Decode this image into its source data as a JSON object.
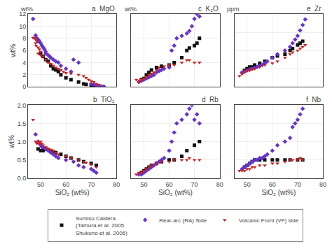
{
  "chart_data": [
    {
      "type": "scatter",
      "title": "a  MgO",
      "ylabel": "wt%",
      "annotations": [
        "wt%"
      ],
      "xlim": [
        45,
        80
      ],
      "xticks": [
        50,
        60,
        70,
        80
      ],
      "ylim": [
        0,
        12
      ],
      "yticks": [
        0,
        2,
        4,
        6,
        8,
        10,
        12
      ],
      "grid": true,
      "tick_labels": "y",
      "legend": "bottom",
      "series": [
        {
          "name": "Sumisu Caldera\n(Tamura et al. 2005\nShukuno et al. 2006)",
          "color": "#111111",
          "marker": "square",
          "x": [
            49,
            50,
            51,
            52,
            53,
            54,
            55,
            56,
            57,
            58,
            60,
            62,
            65,
            67,
            68,
            70,
            71,
            72,
            73
          ],
          "values": [
            7.5,
            5.5,
            5.0,
            4.5,
            4.2,
            3.5,
            3.0,
            2.8,
            2.5,
            2.0,
            1.5,
            1.2,
            0.8,
            0.5,
            0.4,
            0.3,
            0.2,
            0.15,
            0.1
          ]
        },
        {
          "name": "Rear-arc (RA) Side",
          "color": "#6633cc",
          "marker": "diamond",
          "x": [
            47,
            48,
            48.5,
            49,
            49.5,
            50,
            50.5,
            51,
            51.5,
            52,
            52,
            53,
            53.5,
            54,
            55,
            56,
            57,
            58,
            60,
            62,
            63,
            65,
            70,
            71,
            72,
            73,
            74,
            75
          ],
          "values": [
            11.2,
            8.5,
            8.0,
            7.8,
            7.5,
            7.2,
            6.8,
            6.5,
            6.2,
            5.8,
            5.5,
            5.2,
            5.0,
            4.8,
            4.5,
            4.2,
            4.0,
            3.5,
            3.0,
            2.5,
            4.5,
            4.0,
            0.5,
            0.4,
            0.3,
            0.2,
            0.1,
            0.1
          ]
        },
        {
          "name": "Volcanic Front (VF) side",
          "color": "#cc2222",
          "marker": "triangle-down",
          "x": [
            47,
            47.5,
            48,
            48.5,
            48,
            48.2,
            49,
            49.5,
            50,
            49,
            50,
            51,
            52,
            53,
            54,
            55,
            56,
            57,
            58,
            59,
            60,
            62,
            65,
            67,
            68,
            69,
            70,
            71,
            72,
            73
          ],
          "values": [
            8.1,
            8.1,
            7.8,
            7.5,
            7.2,
            6.8,
            6.5,
            6.2,
            5.8,
            5.5,
            5.2,
            5.0,
            4.5,
            4.0,
            3.8,
            3.5,
            3.2,
            3.0,
            2.8,
            2.5,
            2.3,
            2.2,
            2.0,
            1.8,
            1.5,
            1.2,
            1.0,
            0.8,
            0.5,
            0.3
          ]
        }
      ]
    },
    {
      "type": "scatter",
      "title": "b  TiO₂",
      "ylabel": "wt%",
      "xlabel": "SiO₂ (wt%)",
      "xlim": [
        45,
        80
      ],
      "xticks": [
        50,
        60,
        70,
        80
      ],
      "ylim": [
        0,
        2
      ],
      "yticks": [
        {
          "value": 0,
          "label": "0.0"
        },
        0.5,
        {
          "value": 1,
          "label": "1.0"
        },
        1.5,
        {
          "value": 2,
          "label": "2.0"
        }
      ],
      "grid": true,
      "tick_labels": true,
      "legend": "bottom",
      "series": [
        {
          "name": "Sumisu Caldera\n(Tamura et al. 2005\nShukuno et al. 2006)",
          "color": "#111111",
          "marker": "square",
          "x": [
            49,
            50,
            51,
            52,
            53,
            54,
            55,
            56,
            58,
            60,
            62,
            65,
            67,
            70,
            72
          ],
          "values": [
            0.8,
            0.75,
            0.75,
            0.8,
            0.78,
            0.75,
            0.72,
            0.7,
            0.65,
            0.6,
            0.55,
            0.5,
            0.45,
            0.4,
            0.35
          ]
        },
        {
          "name": "Rear-arc (RA) Side",
          "color": "#6633cc",
          "marker": "diamond",
          "x": [
            48,
            49,
            49.5,
            50,
            50.5,
            51,
            52,
            53,
            54,
            55,
            56,
            57,
            60,
            63,
            65,
            67,
            70,
            71,
            72
          ],
          "values": [
            1.2,
            1.0,
            0.95,
            0.9,
            0.85,
            0.85,
            0.8,
            0.75,
            0.7,
            0.65,
            0.6,
            0.55,
            0.5,
            0.45,
            0.35,
            0.3,
            0.25,
            0.2,
            0.15
          ]
        },
        {
          "name": "Volcanic Front (VF) side",
          "color": "#cc2222",
          "marker": "triangle-down",
          "x": [
            47,
            48,
            48.5,
            49,
            49.5,
            50,
            50.5,
            51,
            52,
            53,
            54,
            55,
            56,
            57,
            60,
            62,
            65,
            67,
            68,
            70,
            72
          ],
          "values": [
            1.6,
            1.0,
            0.95,
            1.0,
            0.95,
            1.0,
            0.95,
            0.9,
            0.85,
            0.8,
            0.78,
            0.75,
            0.7,
            0.65,
            0.6,
            0.55,
            0.5,
            0.45,
            0.42,
            0.38,
            0.3
          ]
        }
      ]
    },
    {
      "type": "scatter",
      "title": "c  K₂O",
      "annotations": [
        "wt%"
      ],
      "xlim": [
        45,
        80
      ],
      "xticks": [
        50,
        60,
        70,
        80
      ],
      "ylim": [
        0,
        3
      ],
      "yticks": [
        0,
        1,
        2,
        3
      ],
      "grid": true,
      "tick_labels": false,
      "legend": "bottom",
      "series": [
        {
          "name": "Sumisu Caldera\n(Tamura et al. 2005\nShukuno et al. 2006)",
          "color": "#111111",
          "marker": "square",
          "x": [
            49,
            50,
            51,
            52,
            53,
            55,
            57,
            60,
            62,
            65,
            67,
            68,
            70,
            71,
            72
          ],
          "values": [
            0.3,
            0.35,
            0.5,
            0.6,
            0.7,
            0.8,
            0.85,
            0.9,
            1.0,
            1.2,
            1.5,
            1.6,
            1.7,
            1.8,
            2.0
          ]
        },
        {
          "name": "Rear-arc (RA) Side",
          "color": "#6633cc",
          "marker": "diamond",
          "x": [
            48,
            49,
            50,
            51,
            52,
            53,
            54,
            55,
            56,
            57,
            58,
            60,
            61,
            62,
            63,
            65,
            67,
            68,
            69,
            70,
            71,
            72
          ],
          "values": [
            0.2,
            0.25,
            0.3,
            0.35,
            0.4,
            0.45,
            0.5,
            0.6,
            0.65,
            0.7,
            0.75,
            0.8,
            1.5,
            1.7,
            2.0,
            2.1,
            2.2,
            2.3,
            2.5,
            2.8,
            3.0,
            2.9
          ]
        },
        {
          "name": "Volcanic Front (VF) side",
          "color": "#cc2222",
          "marker": "triangle-down",
          "x": [
            47,
            48,
            48.5,
            49,
            50,
            51,
            52,
            53,
            54,
            55,
            56,
            58,
            60,
            62,
            65,
            67,
            68,
            70,
            72
          ],
          "values": [
            0.3,
            0.2,
            0.25,
            0.3,
            0.35,
            0.4,
            0.5,
            0.55,
            0.6,
            0.7,
            0.8,
            0.85,
            0.9,
            0.9,
            1.0,
            1.1,
            1.1,
            1.0,
            1.0
          ]
        }
      ]
    },
    {
      "type": "scatter",
      "title": "d  Rb",
      "xlabel": "SiO₂ (wt%)",
      "xlim": [
        45,
        80
      ],
      "xticks": [
        50,
        60,
        70,
        80
      ],
      "ylim": [
        0,
        40
      ],
      "yticks": [
        0,
        10,
        20,
        30,
        40
      ],
      "grid": true,
      "tick_labels": "x",
      "legend": "bottom",
      "series": [
        {
          "name": "Sumisu Caldera\n(Tamura et al. 2005\nShukuno et al. 2006)",
          "color": "#111111",
          "marker": "square",
          "x": [
            49,
            50,
            51,
            52,
            53,
            55,
            57,
            60,
            62,
            65,
            67,
            70,
            72
          ],
          "values": [
            3,
            4,
            5,
            6,
            7,
            8,
            9,
            10,
            10,
            12,
            15,
            18,
            20
          ]
        },
        {
          "name": "Rear-arc (RA) Side",
          "color": "#6633cc",
          "marker": "diamond",
          "x": [
            48,
            49,
            50,
            51,
            52,
            53,
            54,
            55,
            56,
            57,
            58,
            60,
            61,
            62,
            63,
            65,
            67,
            68,
            69,
            70,
            71,
            72
          ],
          "values": [
            2,
            2,
            3,
            4,
            5,
            6,
            7,
            8,
            9,
            10,
            11,
            15,
            20,
            25,
            30,
            32,
            35,
            38,
            40,
            32,
            35,
            30
          ]
        },
        {
          "name": "Volcanic Front (VF) side",
          "color": "#cc2222",
          "marker": "triangle-down",
          "x": [
            47,
            48,
            49,
            50,
            51,
            52,
            53,
            55,
            57,
            60,
            62,
            65,
            67,
            68,
            70,
            72
          ],
          "values": [
            2,
            3,
            3,
            4,
            5,
            6,
            7,
            8,
            9,
            9,
            10,
            10,
            10,
            11,
            10,
            10
          ]
        }
      ]
    },
    {
      "type": "scatter",
      "title": "e  Zr",
      "annotations": [
        "ppm"
      ],
      "xlim": [
        45,
        80
      ],
      "xticks": [
        50,
        60,
        70,
        80
      ],
      "ylim": [
        0,
        200
      ],
      "yticks": [
        0,
        50,
        100,
        150,
        200
      ],
      "grid": true,
      "tick_labels": false,
      "legend": "bottom",
      "series": [
        {
          "name": "Sumisu Caldera\n(Tamura et al. 2005\nShukuno et al. 2006)",
          "color": "#111111",
          "marker": "square",
          "x": [
            49,
            50,
            51,
            52,
            53,
            55,
            57,
            60,
            62,
            65,
            67,
            68,
            70,
            71,
            72
          ],
          "values": [
            45,
            50,
            55,
            55,
            60,
            65,
            70,
            80,
            85,
            90,
            100,
            105,
            115,
            120,
            125
          ]
        },
        {
          "name": "Rear-arc (RA) Side",
          "color": "#6633cc",
          "marker": "diamond",
          "x": [
            48,
            49,
            50,
            51,
            52,
            53,
            54,
            55,
            56,
            57,
            58,
            60,
            62,
            65,
            67,
            68,
            69,
            70,
            71,
            72,
            73
          ],
          "values": [
            40,
            42,
            45,
            48,
            50,
            52,
            55,
            58,
            60,
            65,
            70,
            80,
            90,
            100,
            110,
            120,
            130,
            140,
            155,
            170,
            185
          ]
        },
        {
          "name": "Volcanic Front (VF) side",
          "color": "#cc2222",
          "marker": "triangle-down",
          "x": [
            47,
            48,
            49,
            50,
            51,
            52,
            53,
            55,
            57,
            60,
            62,
            65,
            67,
            68,
            70,
            71,
            72,
            73
          ],
          "values": [
            30,
            35,
            40,
            45,
            45,
            48,
            50,
            55,
            60,
            65,
            70,
            80,
            90,
            95,
            100,
            105,
            110,
            115
          ]
        }
      ]
    },
    {
      "type": "scatter",
      "title": "f  Nb",
      "xlabel": "SiO₂ (wt%)",
      "xlim": [
        45,
        80
      ],
      "xticks": [
        50,
        60,
        70,
        80
      ],
      "ylim": [
        0,
        4
      ],
      "yticks": [
        0,
        1,
        2,
        3,
        4
      ],
      "grid": true,
      "tick_labels": "x",
      "legend": "bottom",
      "series": [
        {
          "name": "Sumisu Caldera\n(Tamura et al. 2005\nShukuno et al. 2006)",
          "color": "#111111",
          "marker": "square",
          "x": [
            49,
            50,
            51,
            52,
            53,
            55,
            57,
            60,
            62,
            65,
            67,
            70,
            72
          ],
          "values": [
            0.6,
            0.7,
            0.8,
            0.9,
            1.0,
            1.0,
            1.0,
            1.0,
            1.0,
            1.0,
            1.0,
            1.0,
            1.0
          ]
        },
        {
          "name": "Rear-arc (RA) Side",
          "color": "#6633cc",
          "marker": "diamond",
          "x": [
            48,
            49,
            50,
            51,
            52,
            53,
            54,
            55,
            56,
            57,
            58,
            60,
            62,
            65,
            67,
            68,
            69,
            70,
            71,
            72
          ],
          "values": [
            0.5,
            0.6,
            0.7,
            0.8,
            0.9,
            1.0,
            1.0,
            1.1,
            1.1,
            1.2,
            1.3,
            1.5,
            1.8,
            2.0,
            2.2,
            2.8,
            3.0,
            3.2,
            3.5,
            3.8
          ]
        },
        {
          "name": "Volcanic Front (VF) side",
          "color": "#cc2222",
          "marker": "triangle-down",
          "x": [
            47,
            48,
            49,
            50,
            51,
            52,
            53,
            55,
            57,
            60,
            62,
            65,
            67,
            68,
            70,
            71,
            72
          ],
          "values": [
            0.4,
            0.4,
            0.4,
            0.5,
            0.5,
            0.6,
            0.6,
            0.7,
            0.7,
            0.8,
            0.8,
            0.9,
            1.0,
            1.0,
            1.0,
            1.1,
            1.0
          ]
        }
      ]
    }
  ]
}
